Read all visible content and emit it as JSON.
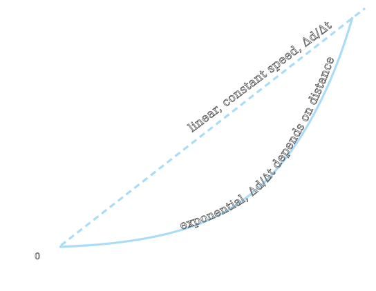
{
  "diagram": {
    "origin_label": "0",
    "linear_label": "linear, constant speed, Δd/Δt",
    "exponential_label": "exponential, Δd/Δt depends on distance",
    "colors": {
      "curve": "#aadcf7",
      "label_outline": "#444444",
      "label_fill": "#ffffff"
    }
  }
}
